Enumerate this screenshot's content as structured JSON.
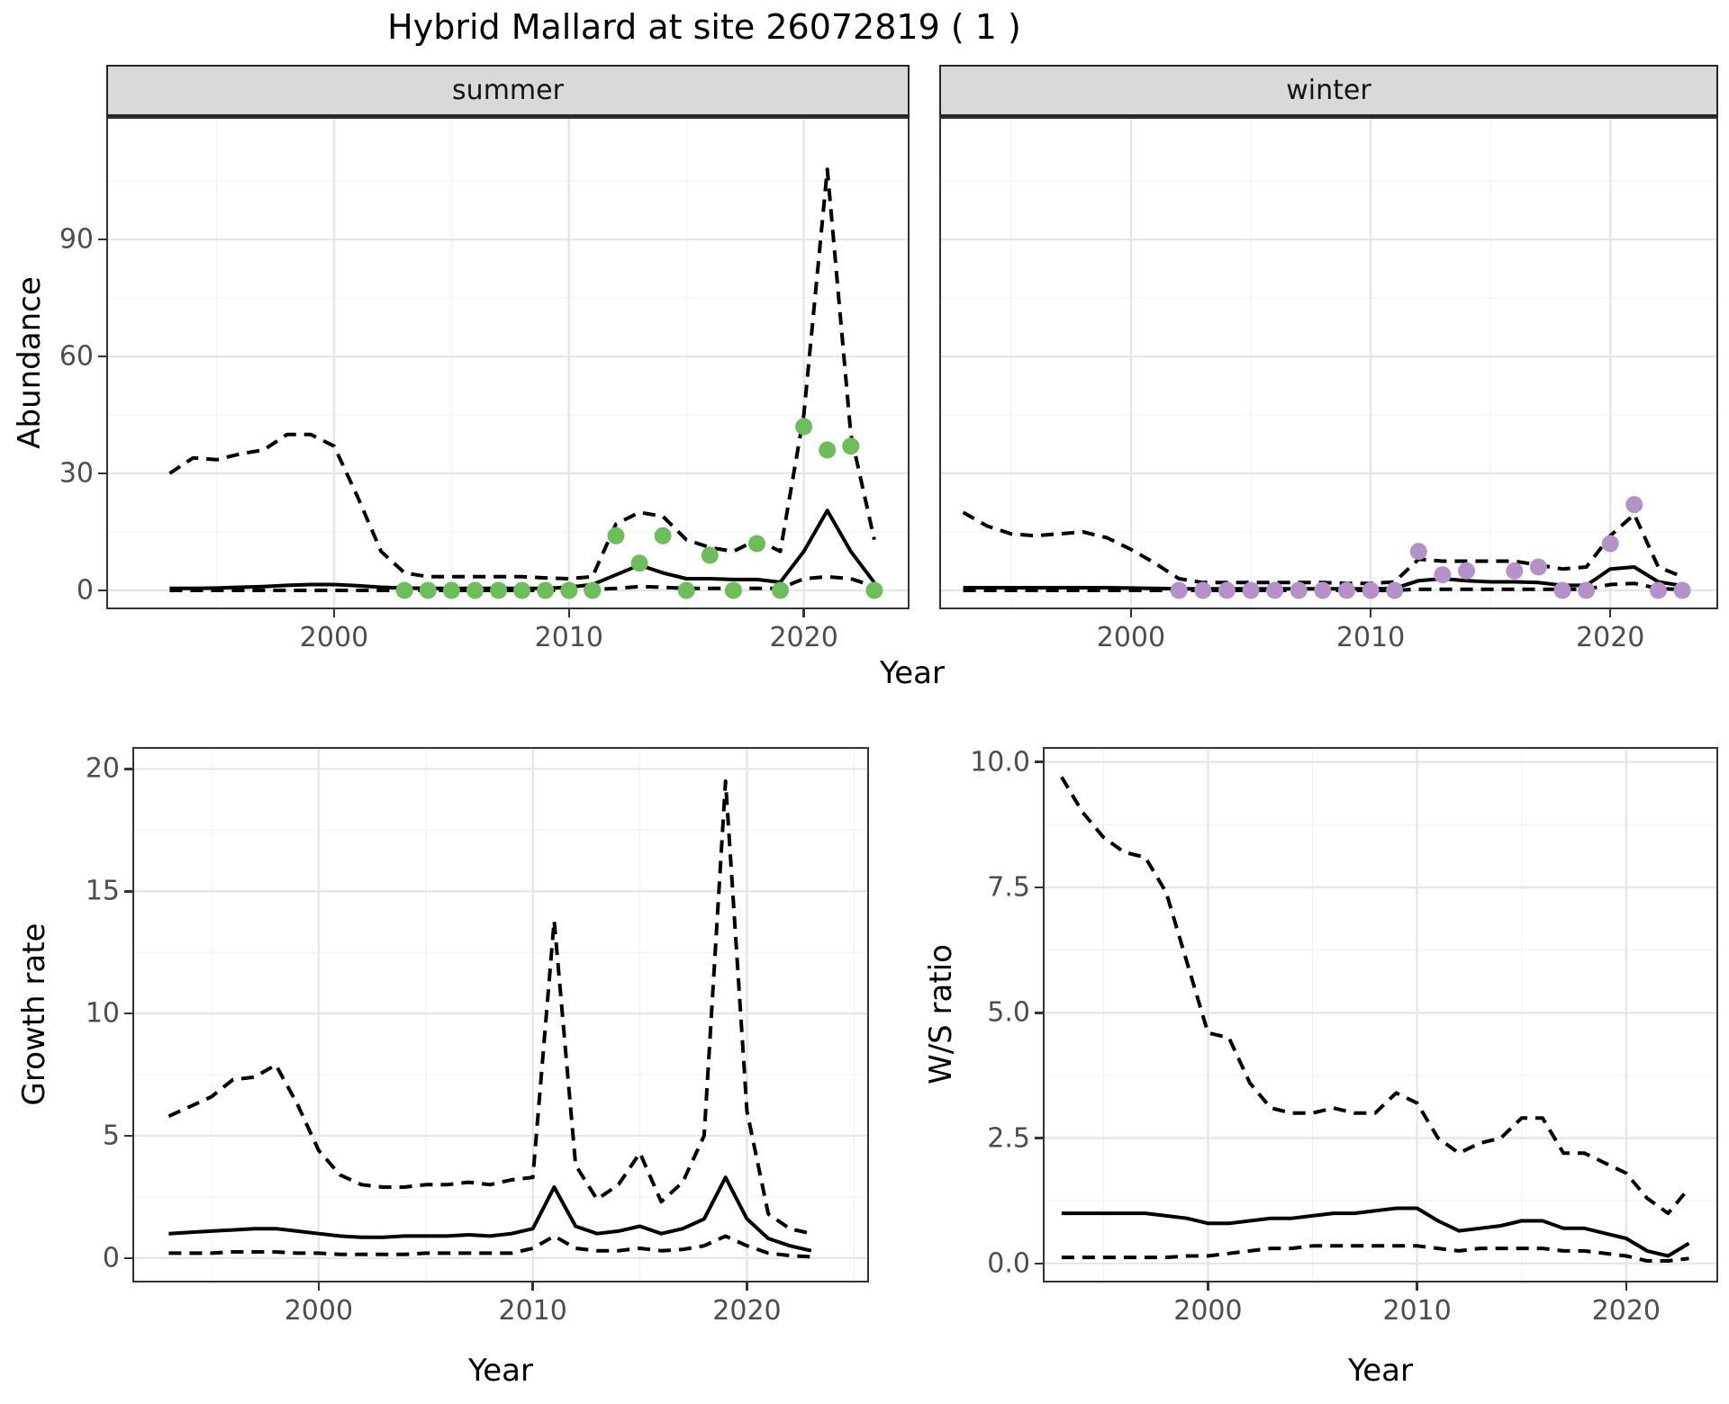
{
  "title": "Hybrid Mallard at site 26072819 ( 1 )",
  "labels": {
    "year": "Year",
    "abundance": "Abundance",
    "growth_rate": "Growth rate",
    "ws_ratio": "W/S ratio"
  },
  "colors": {
    "summer_points": "#6cbe5a",
    "winter_points": "#b591c9",
    "line": "#000000",
    "strip_bg": "#d9d9d9",
    "grid_major": "#e6e6e6",
    "grid_minor": "#f2f2f2",
    "axis_text": "#4d4d4d"
  },
  "chart_data": [
    {
      "type": "line",
      "panel": "abundance-summer",
      "facet_label": "summer",
      "ylabel": "Abundance",
      "xlabel": "Year",
      "years": [
        1993,
        1994,
        1995,
        1996,
        1997,
        1998,
        1999,
        2000,
        2001,
        2002,
        2003,
        2004,
        2005,
        2006,
        2007,
        2008,
        2009,
        2010,
        2011,
        2012,
        2013,
        2014,
        2015,
        2016,
        2017,
        2018,
        2019,
        2020,
        2021,
        2022,
        2023
      ],
      "x_range": [
        1990.3,
        2024.5
      ],
      "y_range": [
        -4.85,
        121.4
      ],
      "x_ticks": [
        2000,
        2010,
        2020
      ],
      "x_minor": [
        1995,
        2005,
        2015
      ],
      "y_ticks": [
        0,
        30,
        60,
        90
      ],
      "y_minor": [
        15,
        45,
        75,
        105
      ],
      "grid": true,
      "legend": "none",
      "series": [
        {
          "name": "upper_95_ci",
          "style": "dashed",
          "values": [
            30,
            34,
            33.5,
            35,
            36,
            40,
            40,
            37,
            24,
            10,
            4.5,
            3.5,
            3.5,
            3.5,
            3.5,
            3.5,
            3.2,
            3,
            3.5,
            17,
            20,
            19,
            13,
            11,
            10,
            13,
            10,
            45,
            108,
            40,
            13
          ]
        },
        {
          "name": "median",
          "style": "solid",
          "values": [
            0.5,
            0.5,
            0.6,
            0.8,
            1,
            1.3,
            1.5,
            1.5,
            1.2,
            0.8,
            0.6,
            0.5,
            0.5,
            0.5,
            0.5,
            0.5,
            0.5,
            0.8,
            1.5,
            4,
            6.5,
            4.5,
            3,
            3,
            2.8,
            2.8,
            2.1,
            10,
            20.5,
            10,
            2
          ]
        },
        {
          "name": "lower_95_ci",
          "style": "dashed",
          "values": [
            0,
            0,
            0,
            0,
            0,
            0,
            0,
            0,
            0,
            0,
            0,
            0,
            0,
            0,
            0,
            0,
            0,
            0,
            0.2,
            0.5,
            1,
            0.8,
            0.5,
            0.5,
            0.5,
            0.5,
            0.5,
            3,
            3.5,
            3,
            1
          ]
        }
      ],
      "points": {
        "name": "observed_counts",
        "color": "#6cbe5a",
        "data": [
          [
            2003,
            0
          ],
          [
            2004,
            0
          ],
          [
            2005,
            0
          ],
          [
            2006,
            0
          ],
          [
            2007,
            0
          ],
          [
            2008,
            0
          ],
          [
            2009,
            0
          ],
          [
            2010,
            0
          ],
          [
            2011,
            0
          ],
          [
            2012,
            14
          ],
          [
            2013,
            7
          ],
          [
            2014,
            14
          ],
          [
            2015,
            0
          ],
          [
            2016,
            9
          ],
          [
            2017,
            0
          ],
          [
            2018,
            12
          ],
          [
            2019,
            0
          ],
          [
            2020,
            42
          ],
          [
            2021,
            36
          ],
          [
            2022,
            37
          ],
          [
            2023,
            0
          ]
        ]
      }
    },
    {
      "type": "line",
      "panel": "abundance-winter",
      "facet_label": "winter",
      "ylabel": "Abundance",
      "xlabel": "Year",
      "years": [
        1993,
        1994,
        1995,
        1996,
        1997,
        1998,
        1999,
        2000,
        2001,
        2002,
        2003,
        2004,
        2005,
        2006,
        2007,
        2008,
        2009,
        2010,
        2011,
        2012,
        2013,
        2014,
        2015,
        2016,
        2017,
        2018,
        2019,
        2020,
        2021,
        2022,
        2023
      ],
      "x_range": [
        1992.0,
        2024.5
      ],
      "y_range": [
        -4.85,
        121.4
      ],
      "x_ticks": [
        2000,
        2010,
        2020
      ],
      "x_minor": [
        1995,
        2005,
        2015
      ],
      "y_ticks": [
        0,
        30,
        60,
        90
      ],
      "y_minor": [
        15,
        45,
        75,
        105
      ],
      "grid": true,
      "legend": "none",
      "series": [
        {
          "name": "upper_95_ci",
          "style": "dashed",
          "values": [
            20,
            16.5,
            14.5,
            14,
            14.5,
            15,
            13.5,
            10.5,
            7,
            3,
            2,
            2,
            2,
            2,
            2,
            2,
            1.8,
            1.8,
            2.2,
            8,
            7.5,
            7.5,
            7.5,
            7.5,
            6.5,
            5.5,
            6,
            14,
            19.5,
            6,
            3.5
          ]
        },
        {
          "name": "median",
          "style": "solid",
          "values": [
            0.7,
            0.7,
            0.7,
            0.7,
            0.7,
            0.7,
            0.7,
            0.6,
            0.5,
            0.4,
            0.4,
            0.4,
            0.4,
            0.4,
            0.4,
            0.4,
            0.4,
            0.4,
            0.5,
            2.5,
            3,
            2.5,
            2.2,
            2.2,
            2,
            1.3,
            1.3,
            5.5,
            6,
            2.2,
            1.2
          ]
        },
        {
          "name": "lower_95_ci",
          "style": "dashed",
          "values": [
            0,
            0,
            0,
            0,
            0,
            0,
            0,
            0,
            0,
            0,
            0,
            0,
            0,
            0,
            0,
            0,
            0,
            0,
            0,
            0.3,
            0.3,
            0.3,
            0.3,
            0.3,
            0.3,
            0.3,
            0.3,
            1.5,
            1.8,
            0.5,
            0.2
          ]
        }
      ],
      "points": {
        "name": "observed_counts",
        "color": "#b591c9",
        "data": [
          [
            2002,
            0
          ],
          [
            2003,
            0
          ],
          [
            2004,
            0
          ],
          [
            2005,
            0
          ],
          [
            2006,
            0
          ],
          [
            2007,
            0
          ],
          [
            2008,
            0
          ],
          [
            2009,
            0
          ],
          [
            2010,
            0
          ],
          [
            2011,
            0
          ],
          [
            2012,
            10
          ],
          [
            2013,
            4
          ],
          [
            2014,
            5
          ],
          [
            2016,
            5
          ],
          [
            2017,
            6
          ],
          [
            2018,
            0
          ],
          [
            2019,
            0
          ],
          [
            2020,
            12
          ],
          [
            2021,
            22
          ],
          [
            2022,
            0
          ],
          [
            2023,
            0
          ]
        ]
      }
    },
    {
      "type": "line",
      "panel": "growth-rate",
      "facet_label": "",
      "ylabel": "Growth rate",
      "xlabel": "Year",
      "years": [
        1993,
        1994,
        1995,
        1996,
        1997,
        1998,
        1999,
        2000,
        2001,
        2002,
        2003,
        2004,
        2005,
        2006,
        2007,
        2008,
        2009,
        2010,
        2011,
        2012,
        2013,
        2014,
        2015,
        2016,
        2017,
        2018,
        2019,
        2020,
        2021,
        2022,
        2023
      ],
      "x_range": [
        1991.3,
        2025.7
      ],
      "y_range": [
        -1.0,
        20.9
      ],
      "x_ticks": [
        2000,
        2010,
        2020
      ],
      "x_minor": [
        1995,
        2005,
        2015,
        2025
      ],
      "y_ticks": [
        0,
        5,
        10,
        15,
        20
      ],
      "y_minor": [
        2.5,
        7.5,
        12.5,
        17.5
      ],
      "grid": true,
      "legend": "none",
      "series": [
        {
          "name": "upper_95_ci",
          "style": "dashed",
          "values": [
            5.8,
            6.2,
            6.6,
            7.3,
            7.4,
            7.9,
            6.3,
            4.4,
            3.4,
            3,
            2.9,
            2.9,
            3,
            3,
            3.1,
            3,
            3.2,
            3.3,
            13.8,
            3.8,
            2.4,
            3,
            4.3,
            2.3,
            3.1,
            5,
            19.5,
            6,
            1.8,
            1.2,
            1
          ]
        },
        {
          "name": "median",
          "style": "solid",
          "values": [
            1,
            1.05,
            1.1,
            1.15,
            1.2,
            1.2,
            1.1,
            1,
            0.9,
            0.85,
            0.85,
            0.9,
            0.9,
            0.9,
            0.95,
            0.9,
            1,
            1.2,
            2.9,
            1.3,
            1,
            1.1,
            1.3,
            1,
            1.2,
            1.6,
            3.3,
            1.6,
            0.8,
            0.5,
            0.3
          ]
        },
        {
          "name": "lower_95_ci",
          "style": "dashed",
          "values": [
            0.2,
            0.2,
            0.2,
            0.25,
            0.25,
            0.25,
            0.2,
            0.2,
            0.15,
            0.15,
            0.15,
            0.15,
            0.2,
            0.2,
            0.2,
            0.2,
            0.2,
            0.4,
            0.9,
            0.4,
            0.3,
            0.3,
            0.4,
            0.3,
            0.35,
            0.5,
            0.9,
            0.5,
            0.2,
            0.1,
            0.05
          ]
        }
      ],
      "points": null
    },
    {
      "type": "line",
      "panel": "ws-ratio",
      "facet_label": "",
      "ylabel": "W/S ratio",
      "xlabel": "Year",
      "years": [
        1993,
        1994,
        1995,
        1996,
        1997,
        1998,
        1999,
        2000,
        2001,
        2002,
        2003,
        2004,
        2005,
        2006,
        2007,
        2008,
        2009,
        2010,
        2011,
        2012,
        2013,
        2014,
        2015,
        2016,
        2017,
        2018,
        2019,
        2020,
        2021,
        2022,
        2023
      ],
      "x_range": [
        1992.1,
        2024.4
      ],
      "y_range": [
        -0.38,
        10.3
      ],
      "x_ticks": [
        2000,
        2010,
        2020
      ],
      "x_minor": [
        1995,
        2005,
        2015
      ],
      "y_ticks": [
        0,
        2.5,
        5,
        7.5,
        10
      ],
      "y_tick_labels": [
        "0.0",
        "2.5",
        "5.0",
        "7.5",
        "10.0"
      ],
      "y_minor": [
        1.25,
        3.75,
        6.25,
        8.75
      ],
      "grid": true,
      "legend": "none",
      "series": [
        {
          "name": "upper_95_ci",
          "style": "dashed",
          "values": [
            9.7,
            9,
            8.5,
            8.2,
            8.1,
            7.4,
            6,
            4.6,
            4.5,
            3.6,
            3.1,
            3,
            3,
            3.1,
            3,
            3,
            3.4,
            3.2,
            2.5,
            2.2,
            2.4,
            2.5,
            2.9,
            2.9,
            2.2,
            2.2,
            2,
            1.8,
            1.3,
            1,
            1.5
          ]
        },
        {
          "name": "median",
          "style": "solid",
          "values": [
            1,
            1,
            1,
            1,
            1,
            0.95,
            0.9,
            0.8,
            0.8,
            0.85,
            0.9,
            0.9,
            0.95,
            1,
            1,
            1.05,
            1.1,
            1.1,
            0.85,
            0.65,
            0.7,
            0.75,
            0.85,
            0.85,
            0.7,
            0.7,
            0.6,
            0.5,
            0.25,
            0.15,
            0.4
          ]
        },
        {
          "name": "lower_95_ci",
          "style": "dashed",
          "values": [
            0.12,
            0.12,
            0.12,
            0.12,
            0.12,
            0.12,
            0.15,
            0.15,
            0.2,
            0.25,
            0.3,
            0.3,
            0.35,
            0.35,
            0.35,
            0.35,
            0.35,
            0.35,
            0.3,
            0.25,
            0.3,
            0.3,
            0.3,
            0.3,
            0.25,
            0.25,
            0.2,
            0.15,
            0.05,
            0.05,
            0.1
          ]
        }
      ],
      "points": null
    }
  ]
}
